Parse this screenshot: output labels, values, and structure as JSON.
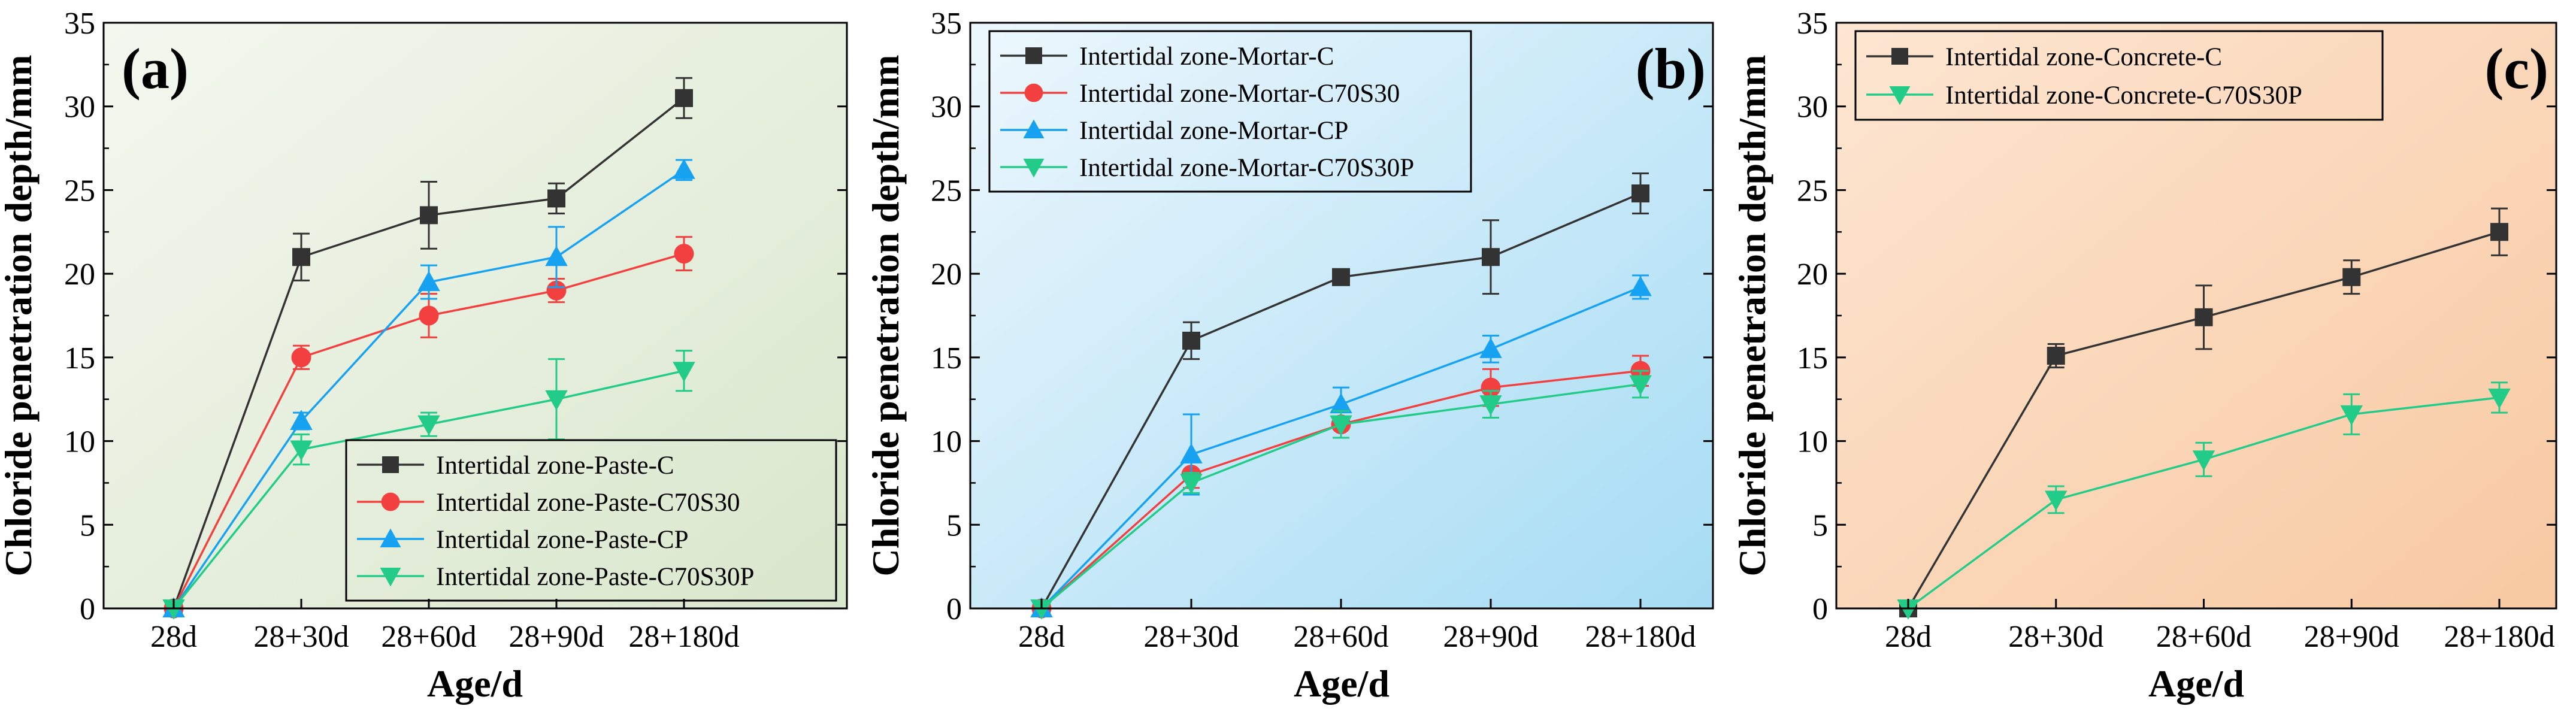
{
  "chart_data": [
    {
      "type": "line",
      "panel_label": "(a)",
      "xlabel": "Age/d",
      "ylabel": "Chloride penetration depth/mm",
      "categories": [
        "28d",
        "28+30d",
        "28+60d",
        "28+90d",
        "28+180d"
      ],
      "ylim": [
        0,
        35
      ],
      "yticks": [
        0,
        5,
        10,
        15,
        20,
        25,
        30,
        35
      ],
      "legend_position": "bottom-right",
      "background_gradient": [
        "#f4f7ef",
        "#d9e7cc"
      ],
      "series": [
        {
          "name": "Intertidal zone-Paste-C",
          "marker": "square",
          "color": "#333333",
          "values": [
            0,
            21.0,
            23.5,
            24.5,
            30.5
          ],
          "errors": [
            0,
            1.4,
            2.0,
            0.9,
            1.2
          ]
        },
        {
          "name": "Intertidal zone-Paste-C70S30",
          "marker": "circle",
          "color": "#f24040",
          "values": [
            0,
            15.0,
            17.5,
            19.0,
            21.2
          ],
          "errors": [
            0,
            0.7,
            1.3,
            0.7,
            1.0
          ]
        },
        {
          "name": "Intertidal zone-Paste-CP",
          "marker": "triangle-up",
          "color": "#16a2f0",
          "values": [
            0,
            11.2,
            19.5,
            21.0,
            26.2
          ],
          "errors": [
            0,
            0.5,
            1.0,
            1.8,
            0.6
          ]
        },
        {
          "name": "Intertidal zone-Paste-C70S30P",
          "marker": "triangle-down",
          "color": "#22cc88",
          "values": [
            0,
            9.5,
            11.0,
            12.5,
            14.2
          ],
          "errors": [
            0,
            0.9,
            0.7,
            2.4,
            1.2
          ]
        }
      ]
    },
    {
      "type": "line",
      "panel_label": "(b)",
      "xlabel": "Age/d",
      "ylabel": "Chloride penetration depth/mm",
      "categories": [
        "28d",
        "28+30d",
        "28+60d",
        "28+90d",
        "28+180d"
      ],
      "ylim": [
        0,
        35
      ],
      "yticks": [
        0,
        5,
        10,
        15,
        20,
        25,
        30,
        35
      ],
      "legend_position": "top-left",
      "background_gradient": [
        "#edf7fd",
        "#a6dcf4"
      ],
      "series": [
        {
          "name": "Intertidal zone-Mortar-C",
          "marker": "square",
          "color": "#333333",
          "values": [
            0,
            16.0,
            19.8,
            21.0,
            24.8
          ],
          "errors": [
            0,
            1.1,
            0.4,
            2.2,
            1.2
          ]
        },
        {
          "name": "Intertidal zone-Mortar-C70S30",
          "marker": "circle",
          "color": "#f24040",
          "values": [
            0,
            8.0,
            11.0,
            13.2,
            14.2
          ],
          "errors": [
            0,
            0.8,
            0.8,
            1.1,
            0.9
          ]
        },
        {
          "name": "Intertidal zone-Mortar-CP",
          "marker": "triangle-up",
          "color": "#16a2f0",
          "values": [
            0,
            9.2,
            12.2,
            15.5,
            19.2
          ],
          "errors": [
            0,
            2.4,
            1.0,
            0.8,
            0.7
          ]
        },
        {
          "name": "Intertidal zone-Mortar-C70S30P",
          "marker": "triangle-down",
          "color": "#22cc88",
          "values": [
            0,
            7.5,
            11.0,
            12.2,
            13.4
          ],
          "errors": [
            0,
            0.6,
            0.8,
            0.8,
            0.8
          ]
        }
      ]
    },
    {
      "type": "line",
      "panel_label": "(c)",
      "xlabel": "Age/d",
      "ylabel": "Chloride penetration depth/mm",
      "categories": [
        "28d",
        "28+30d",
        "28+60d",
        "28+90d",
        "28+180d"
      ],
      "ylim": [
        0,
        35
      ],
      "yticks": [
        0,
        5,
        10,
        15,
        20,
        25,
        30,
        35
      ],
      "legend_position": "top-left",
      "background_gradient": [
        "#fde6d2",
        "#f8c9a2"
      ],
      "series": [
        {
          "name": "Intertidal zone-Concrete-C",
          "marker": "square",
          "color": "#333333",
          "values": [
            0,
            15.1,
            17.4,
            19.8,
            22.5
          ],
          "errors": [
            0,
            0.7,
            1.9,
            1.0,
            1.4
          ]
        },
        {
          "name": "Intertidal zone-Concrete-C70S30P",
          "marker": "triangle-down",
          "color": "#22cc88",
          "values": [
            0,
            6.5,
            8.9,
            11.6,
            12.6
          ],
          "errors": [
            0,
            0.8,
            1.0,
            1.2,
            0.9
          ]
        }
      ]
    }
  ]
}
